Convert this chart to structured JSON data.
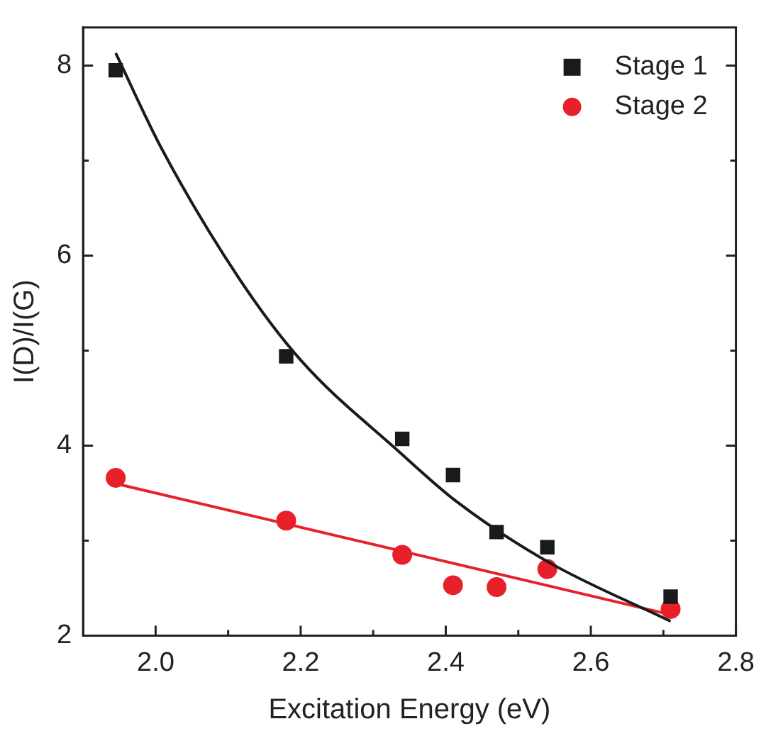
{
  "chart_data": {
    "type": "scatter",
    "xlabel": "Excitation Energy (eV)",
    "ylabel": "I(D)/I(G)",
    "xlim": [
      1.9,
      2.8
    ],
    "ylim": [
      2,
      8.4
    ],
    "xticks": [
      {
        "value": 2.0,
        "label": "2.0"
      },
      {
        "value": 2.1,
        "label": null
      },
      {
        "value": 2.2,
        "label": "2.2"
      },
      {
        "value": 2.3,
        "label": null
      },
      {
        "value": 2.4,
        "label": "2.4"
      },
      {
        "value": 2.5,
        "label": null
      },
      {
        "value": 2.6,
        "label": "2.6"
      },
      {
        "value": 2.7,
        "label": null
      },
      {
        "value": 2.8,
        "label": "2.8"
      }
    ],
    "yticks": [
      2,
      {
        "value": 3,
        "label": null
      },
      4,
      {
        "value": 5,
        "label": null
      },
      6,
      {
        "value": 7,
        "label": null
      },
      8
    ],
    "grid": false,
    "legend": "top right",
    "series": [
      {
        "name": "Stage 1",
        "marker": "square",
        "color": "#1a1a1a",
        "x": [
          1.945,
          2.18,
          2.34,
          2.41,
          2.47,
          2.54,
          2.71
        ],
        "values": [
          7.95,
          4.94,
          4.07,
          3.69,
          3.09,
          2.93,
          2.41
        ]
      },
      {
        "name": "Stage 2",
        "marker": "circle",
        "color": "#e8202a",
        "x": [
          1.945,
          2.18,
          2.34,
          2.41,
          2.47,
          2.54,
          2.71
        ],
        "values": [
          3.66,
          3.21,
          2.85,
          2.53,
          2.51,
          2.7,
          2.28
        ]
      },
      {
        "type": "line",
        "marker": "none",
        "color": "#1a1a1a",
        "x": [
          1.945,
          2.008,
          2.115,
          2.2,
          2.335,
          2.415,
          2.54,
          2.71
        ],
        "values": [
          8.13,
          7.13,
          5.76,
          4.9,
          3.94,
          3.41,
          2.78,
          2.15
        ]
      },
      {
        "type": "line",
        "marker": "none",
        "color": "#e8202a",
        "x": [
          1.945,
          2.71
        ],
        "values": [
          3.6,
          2.22
        ]
      }
    ]
  }
}
